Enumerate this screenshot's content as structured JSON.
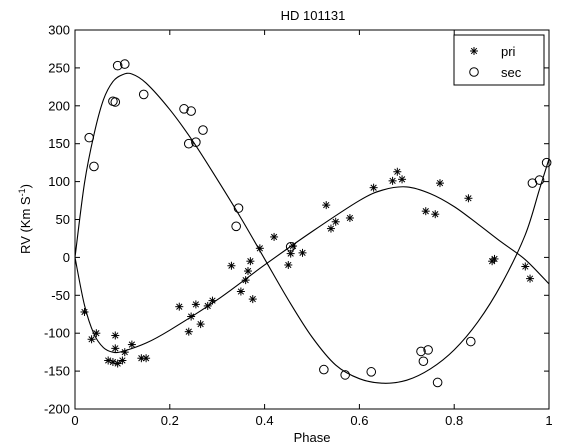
{
  "chart_data": {
    "type": "scatter",
    "title": "HD 101131",
    "xlabel": "Phase",
    "ylabel": "RV (Km S",
    "ylabel_superscript": "-1",
    "ylabel_close": ")",
    "xlim": [
      0,
      1
    ],
    "ylim": [
      -200,
      300
    ],
    "x_ticks": [
      0,
      0.2,
      0.4,
      0.6,
      0.8,
      1
    ],
    "x_tick_labels": [
      "0",
      "0.2",
      "0.4",
      "0.6",
      "0.8",
      "1"
    ],
    "y_ticks": [
      -200,
      -150,
      -100,
      -50,
      0,
      50,
      100,
      150,
      200,
      250,
      300
    ],
    "y_tick_labels": [
      "-200",
      "-150",
      "-100",
      "-50",
      "0",
      "50",
      "100",
      "150",
      "200",
      "250",
      "300"
    ],
    "grid": false,
    "legend_position": "top-right",
    "series": [
      {
        "name": "pri",
        "marker": "asterisk",
        "points": [
          [
            0.02,
            -72
          ],
          [
            0.035,
            -108
          ],
          [
            0.045,
            -100
          ],
          [
            0.07,
            -136
          ],
          [
            0.08,
            -138
          ],
          [
            0.085,
            -120
          ],
          [
            0.085,
            -103
          ],
          [
            0.09,
            -140
          ],
          [
            0.1,
            -136
          ],
          [
            0.105,
            -125
          ],
          [
            0.12,
            -115
          ],
          [
            0.14,
            -133
          ],
          [
            0.15,
            -133
          ],
          [
            0.22,
            -65
          ],
          [
            0.24,
            -98
          ],
          [
            0.245,
            -78
          ],
          [
            0.255,
            -62
          ],
          [
            0.265,
            -88
          ],
          [
            0.28,
            -64
          ],
          [
            0.29,
            -57
          ],
          [
            0.33,
            -11
          ],
          [
            0.35,
            -45
          ],
          [
            0.36,
            -30
          ],
          [
            0.365,
            -18
          ],
          [
            0.37,
            -5
          ],
          [
            0.375,
            -55
          ],
          [
            0.39,
            12
          ],
          [
            0.42,
            27
          ],
          [
            0.45,
            -10
          ],
          [
            0.455,
            5
          ],
          [
            0.46,
            15
          ],
          [
            0.48,
            6
          ],
          [
            0.53,
            69
          ],
          [
            0.54,
            38
          ],
          [
            0.55,
            47
          ],
          [
            0.58,
            52
          ],
          [
            0.63,
            92
          ],
          [
            0.67,
            101
          ],
          [
            0.68,
            113
          ],
          [
            0.69,
            103
          ],
          [
            0.74,
            61
          ],
          [
            0.76,
            57
          ],
          [
            0.77,
            98
          ],
          [
            0.83,
            78
          ],
          [
            0.88,
            -5
          ],
          [
            0.885,
            -2
          ],
          [
            0.95,
            -12
          ],
          [
            0.96,
            -28
          ]
        ]
      },
      {
        "name": "sec",
        "marker": "circle",
        "points": [
          [
            0.03,
            158
          ],
          [
            0.04,
            120
          ],
          [
            0.08,
            206
          ],
          [
            0.085,
            205
          ],
          [
            0.09,
            253
          ],
          [
            0.105,
            255
          ],
          [
            0.145,
            215
          ],
          [
            0.23,
            196
          ],
          [
            0.24,
            150
          ],
          [
            0.245,
            193
          ],
          [
            0.255,
            152
          ],
          [
            0.27,
            168
          ],
          [
            0.34,
            41
          ],
          [
            0.345,
            65
          ],
          [
            0.455,
            14
          ],
          [
            0.525,
            -148
          ],
          [
            0.57,
            -155
          ],
          [
            0.625,
            -151
          ],
          [
            0.73,
            -124
          ],
          [
            0.735,
            -137
          ],
          [
            0.745,
            -122
          ],
          [
            0.765,
            -165
          ],
          [
            0.835,
            -111
          ],
          [
            0.965,
            98
          ],
          [
            0.98,
            102
          ],
          [
            0.995,
            125
          ]
        ]
      }
    ],
    "fits": [
      {
        "for": "pri",
        "curve": [
          [
            0,
            0
          ],
          [
            0.02,
            -63
          ],
          [
            0.04,
            -101
          ],
          [
            0.06,
            -119
          ],
          [
            0.08,
            -125
          ],
          [
            0.1,
            -124
          ],
          [
            0.15,
            -113
          ],
          [
            0.2,
            -96
          ],
          [
            0.3,
            -56
          ],
          [
            0.4,
            -10
          ],
          [
            0.5,
            34
          ],
          [
            0.6,
            75
          ],
          [
            0.65,
            89
          ],
          [
            0.7,
            93
          ],
          [
            0.75,
            84
          ],
          [
            0.8,
            67
          ],
          [
            0.85,
            44
          ],
          [
            0.9,
            20
          ],
          [
            0.95,
            -3
          ],
          [
            1,
            -35
          ]
        ]
      },
      {
        "for": "sec",
        "curve": [
          [
            0,
            0
          ],
          [
            0.02,
            98
          ],
          [
            0.04,
            162
          ],
          [
            0.06,
            208
          ],
          [
            0.08,
            232
          ],
          [
            0.1,
            241
          ],
          [
            0.12,
            242
          ],
          [
            0.15,
            230
          ],
          [
            0.2,
            195
          ],
          [
            0.25,
            152
          ],
          [
            0.3,
            103
          ],
          [
            0.35,
            52
          ],
          [
            0.4,
            -2
          ],
          [
            0.45,
            -56
          ],
          [
            0.5,
            -105
          ],
          [
            0.55,
            -142
          ],
          [
            0.6,
            -160
          ],
          [
            0.65,
            -166
          ],
          [
            0.7,
            -162
          ],
          [
            0.75,
            -147
          ],
          [
            0.8,
            -122
          ],
          [
            0.85,
            -85
          ],
          [
            0.9,
            -35
          ],
          [
            0.95,
            30
          ],
          [
            0.98,
            90
          ],
          [
            1,
            130
          ]
        ]
      }
    ]
  }
}
